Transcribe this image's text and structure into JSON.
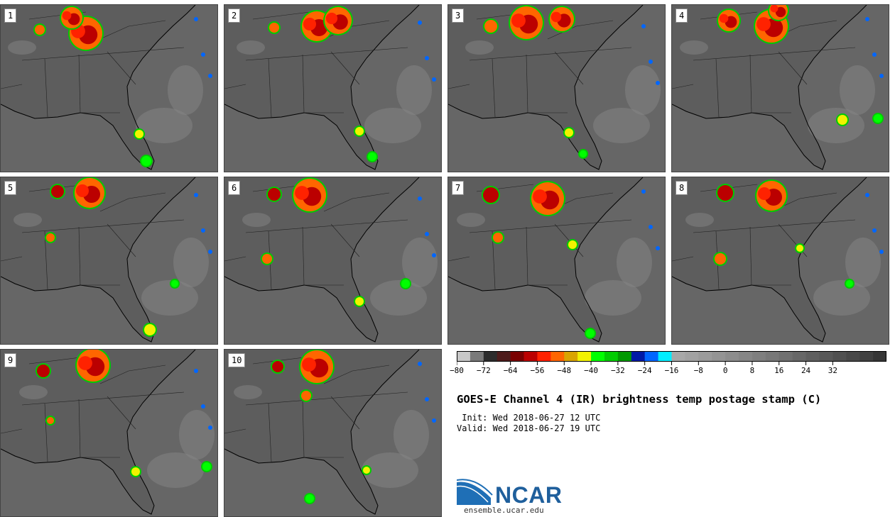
{
  "title": "GOES-E Channel 4 (IR) brightness temp postage stamp (C)",
  "init_line": " Init: Wed 2018-06-27 12 UTC",
  "valid_line": "Valid: Wed 2018-06-27 19 UTC",
  "logo_text": "NCAR",
  "logo_url": "ensemble.ucar.edu",
  "members": [
    "1",
    "2",
    "3",
    "4",
    "5",
    "6",
    "7",
    "8",
    "9",
    "10"
  ],
  "colorbar": {
    "unit": "C",
    "min": -80,
    "max": 48,
    "step": 4,
    "tick_labels": [
      "−80",
      "−72",
      "−64",
      "−56",
      "−48",
      "−40",
      "−32",
      "−24",
      "−16",
      "−8",
      "0",
      "8",
      "16",
      "24",
      "32"
    ],
    "colors": [
      "#c8c8c8",
      "#7a7a7a",
      "#2c2c2c",
      "#4d1c1c",
      "#7a0000",
      "#bb0000",
      "#ff2200",
      "#ff6600",
      "#d9a400",
      "#f2f200",
      "#00ff00",
      "#00cc00",
      "#009900",
      "#001aa6",
      "#0066ff",
      "#00eeff",
      "#a8a8a8",
      "#a2a2a2",
      "#9b9b9b",
      "#949494",
      "#8d8d8d",
      "#868686",
      "#7f7f7f",
      "#787878",
      "#707070",
      "#686868",
      "#606060",
      "#585858",
      "#505050",
      "#484848",
      "#404040",
      "#363636"
    ]
  }
}
